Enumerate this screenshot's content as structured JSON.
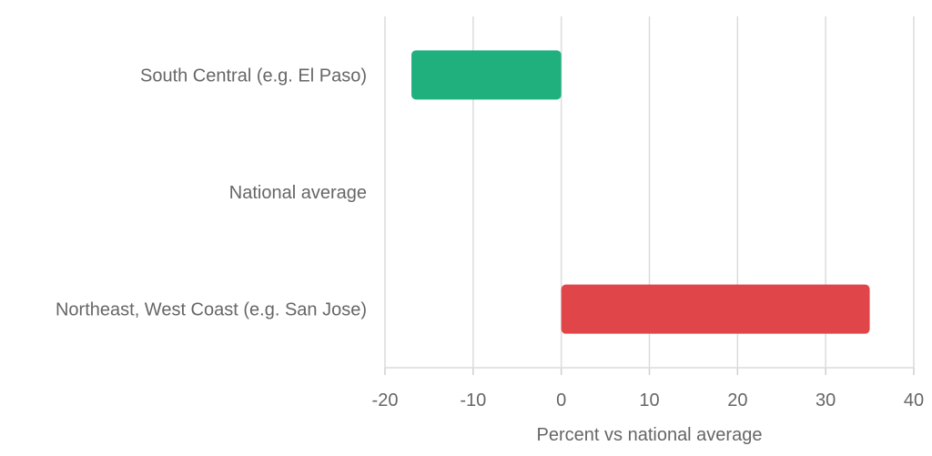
{
  "chart_data": {
    "type": "bar",
    "orientation": "horizontal",
    "categories": [
      "South Central (e.g. El Paso)",
      "National average",
      "Northeast, West Coast (e.g. San Jose)"
    ],
    "values": [
      -17,
      0,
      35
    ],
    "colors": [
      "#1fb07e",
      "#9e9e9e",
      "#e0454a"
    ],
    "xlabel": "Percent vs national average",
    "ylabel": "",
    "title": "",
    "xlim": [
      -20,
      40
    ],
    "xticks": [
      "-20",
      "-10",
      "0",
      "10",
      "20",
      "30",
      "40"
    ],
    "grid": "vertical",
    "legend": "none"
  }
}
